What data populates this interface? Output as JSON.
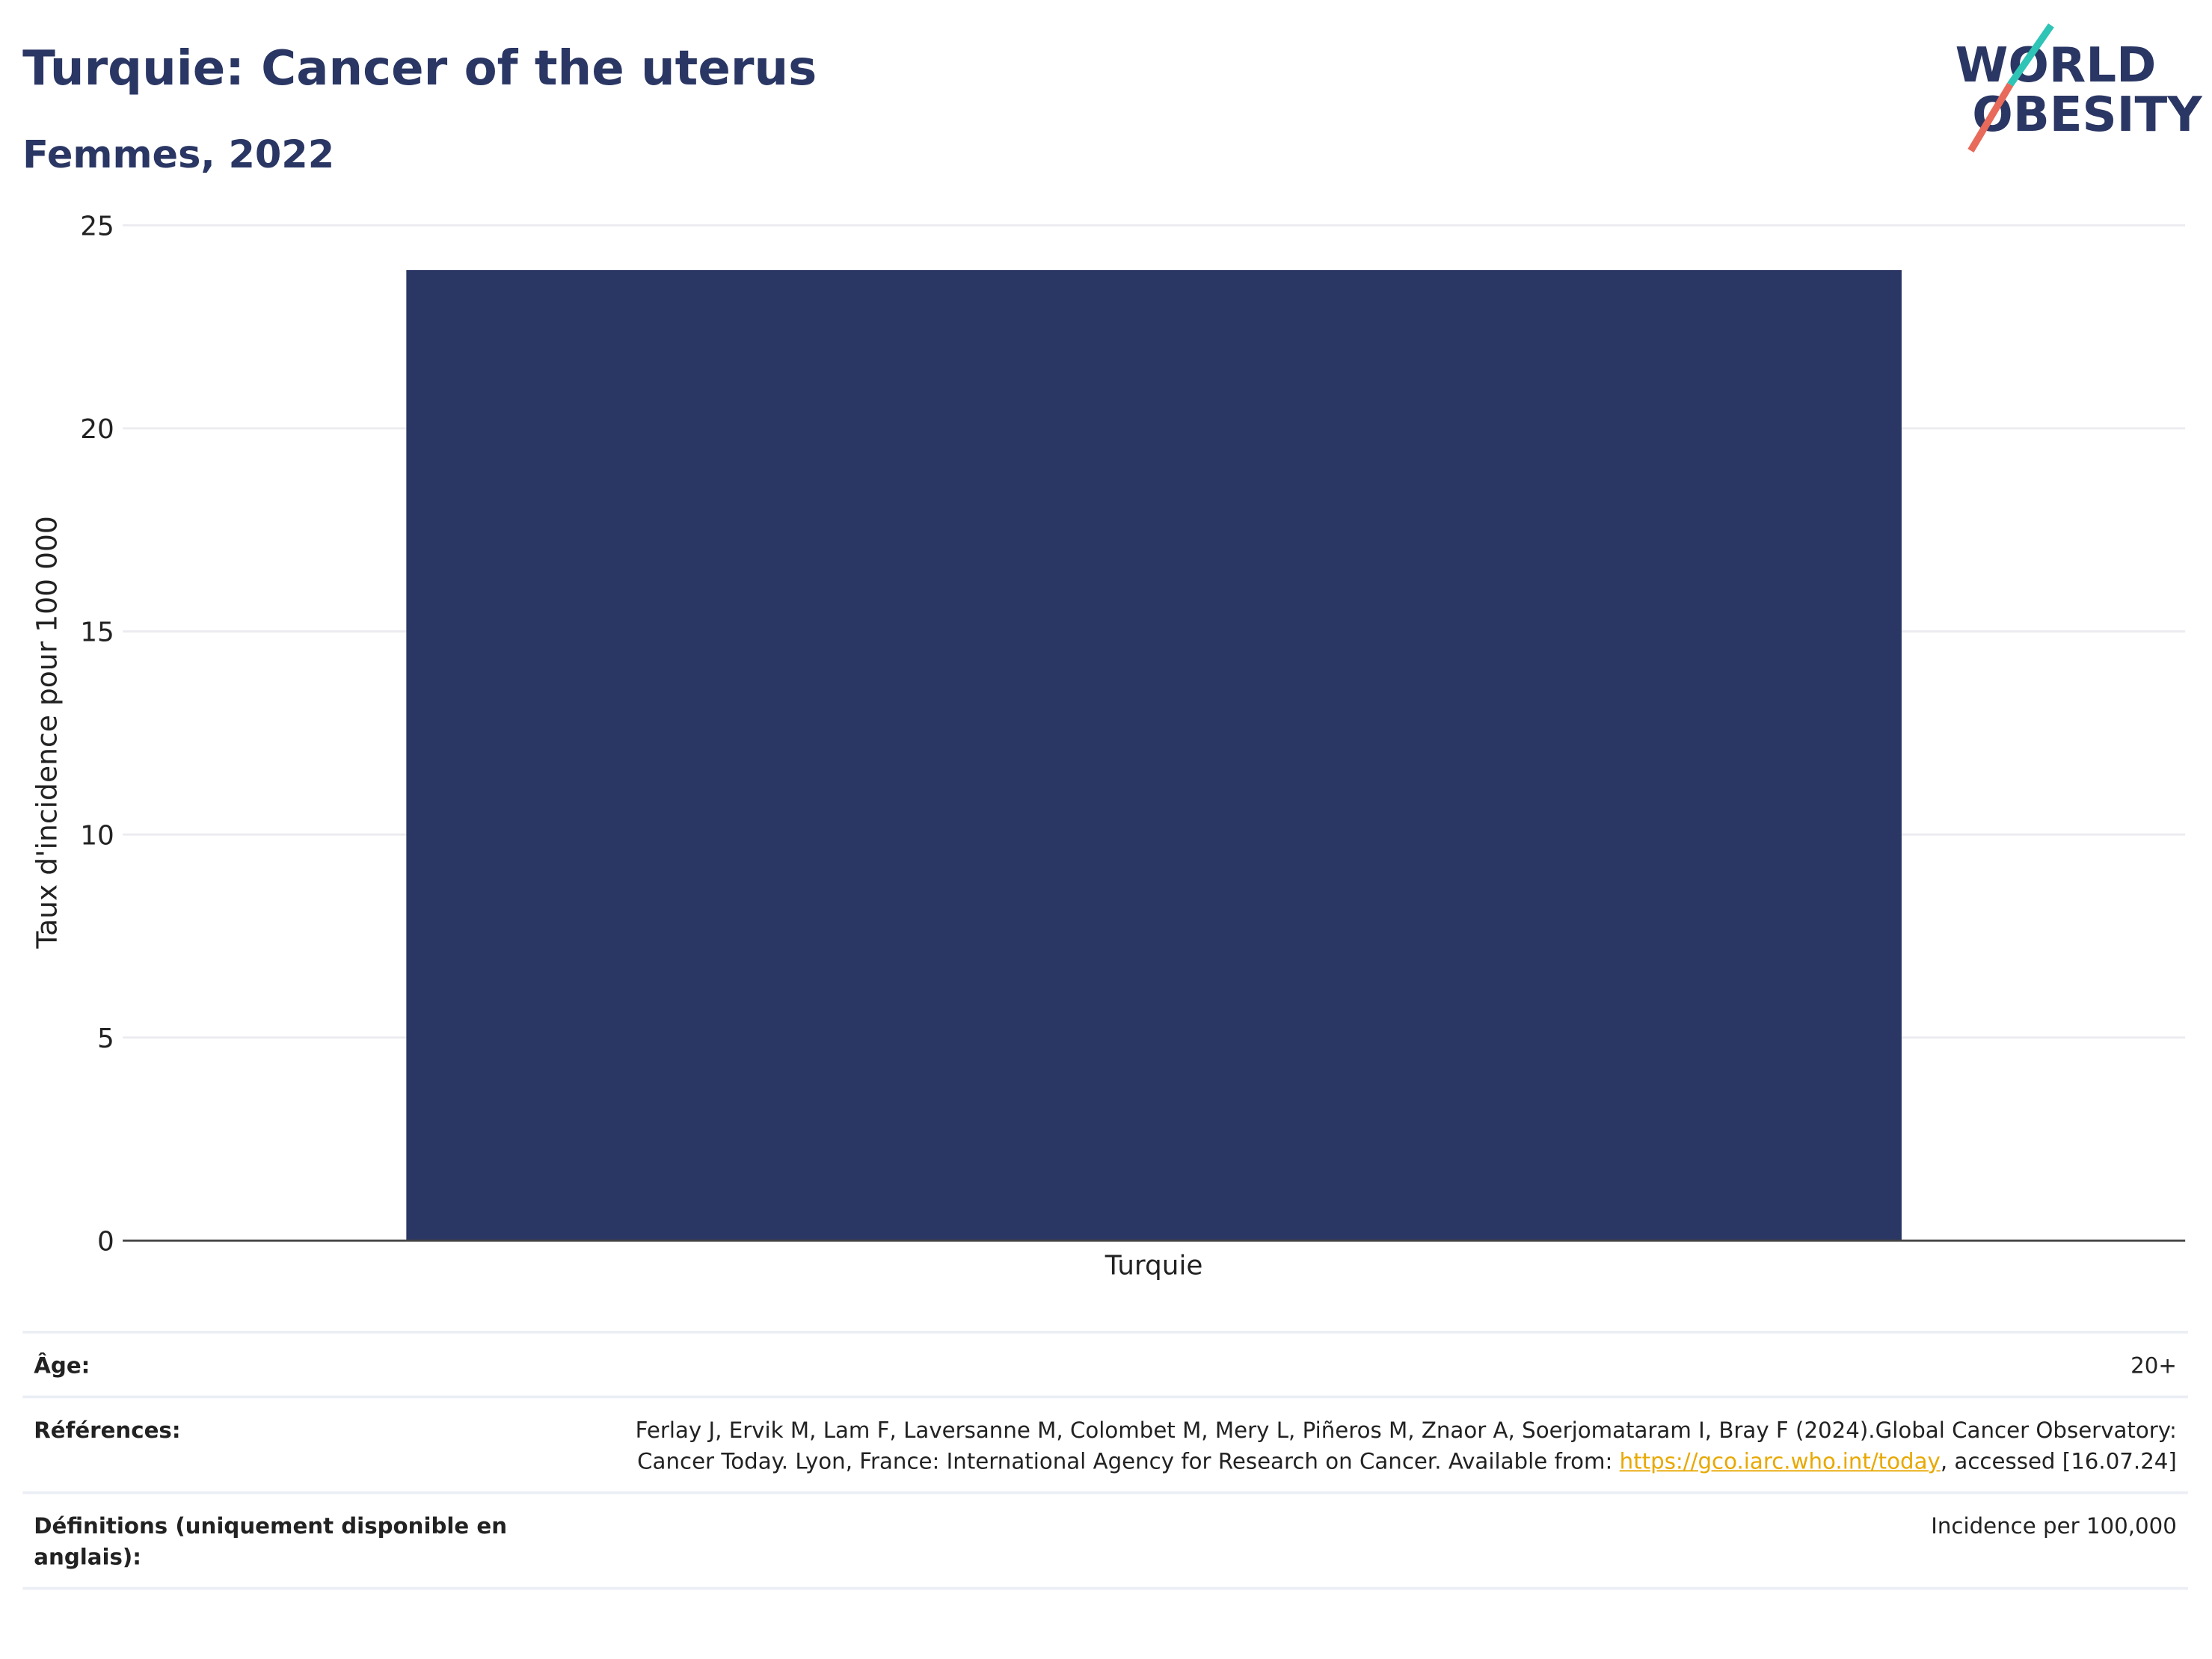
{
  "chart_data": {
    "type": "bar",
    "title": "Turquie: Cancer of the uterus",
    "subtitle": "Femmes, 2022",
    "y_label": "Taux d'incidence pour 100 000",
    "categories": [
      "Turquie"
    ],
    "values": [
      23.9
    ],
    "color": "#2a3663",
    "ylim": [
      0,
      25
    ],
    "yticks": [
      0,
      5,
      10,
      15,
      20,
      25
    ],
    "grid": true
  },
  "logo": {
    "line1": "WORLD",
    "line2": "OBESITY"
  },
  "details": [
    {
      "label": "Âge:",
      "value": "20+"
    },
    {
      "label": "Références:",
      "value": "Ferlay J, Ervik M, Lam F, Laversanne M, Colombet M, Mery L, Piñeros M, Znaor A, Soerjomataram I, Bray F (2024).Global Cancer Observatory: Cancer Today. Lyon, France: International Agency for Research on Cancer. Available from: ",
      "link": "https://gco.iarc.who.int/today",
      "after": ", accessed [16.07.24]"
    },
    {
      "label": "Définitions (uniquement disponible en anglais):",
      "value": "Incidence per 100,000"
    }
  ]
}
